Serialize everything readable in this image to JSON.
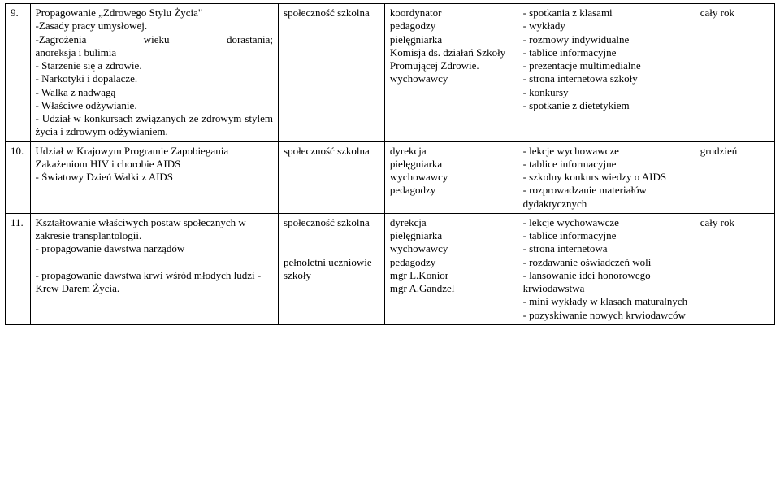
{
  "rows": [
    {
      "num": "9.",
      "desc_lines": {
        "l0": "Propagowanie „Zdrowego Stylu Życia\"",
        "l1": "-Zasady pracy umysłowej.",
        "l2a": "-Zagrożenia",
        "l2b": "wieku",
        "l2c": "dorastania;",
        "l3": "anoreksja i bulimia",
        "l4": "- Starzenie się a zdrowie.",
        "l5": "- Narkotyki i dopalacze.",
        "l6": "- Walka z nadwagą",
        "l7": "- Właściwe odżywianie.",
        "l8": "- Udział w konkursach związanych ze zdrowym stylem życia i zdrowym odżywianiem."
      },
      "who": "społeczność szkolna",
      "resp_lines": {
        "l0": "koordynator",
        "l1": "pedagodzy",
        "l2": "pielęgniarka",
        "l3": "Komisja ds. działań Szkoły Promującej Zdrowie.",
        "l4": "wychowawcy"
      },
      "form_lines": {
        "l0": "- spotkania z klasami",
        "l1": "- wykłady",
        "l2": "- rozmowy indywidualne",
        "l3": "- tablice informacyjne",
        "l4": "- prezentacje multimedialne",
        "l5": "- strona internetowa szkoły",
        "l6": "- konkursy",
        "l7": "- spotkanie z dietetykiem"
      },
      "when": "cały rok"
    },
    {
      "num": "10.",
      "desc_lines": {
        "l0": "Udział w Krajowym Programie Zapobiegania Zakażeniom HIV i chorobie AIDS",
        "l1": "- Światowy Dzień Walki z AIDS"
      },
      "who": "społeczność szkolna",
      "resp_lines": {
        "l0": "dyrekcja",
        "l1": "pielęgniarka",
        "l2": "wychowawcy",
        "l3": "pedagodzy"
      },
      "form_lines": {
        "l0": "- lekcje wychowawcze",
        "l1": "- tablice informacyjne",
        "l2": "- szkolny konkurs wiedzy o AIDS",
        "l3": "- rozprowadzanie materiałów dydaktycznych"
      },
      "when": "grudzień"
    },
    {
      "num": "11.",
      "desc_lines": {
        "l0": "Kształtowanie właściwych postaw społecznych w zakresie transplantologii.",
        "l1": "- propagowanie dawstwa narządów",
        "l2": "",
        "l3": "- propagowanie dawstwa krwi wśród młodych ludzi - Krew Darem Życia."
      },
      "who_lines": {
        "l0": "społeczność szkolna",
        "l1": "",
        "l2": "",
        "l3": "pełnoletni uczniowie szkoły"
      },
      "resp_lines": {
        "l0": "dyrekcja",
        "l1": "pielęgniarka",
        "l2": "wychowawcy",
        "l3": "pedagodzy",
        "l4": "mgr L.Konior",
        "l5": "mgr A.Gandzel"
      },
      "form_lines": {
        "l0": "- lekcje wychowawcze",
        "l1": "- tablice informacyjne",
        "l2": "- strona internetowa",
        "l3": "- rozdawanie oświadczeń woli",
        "l4": "- lansowanie idei honorowego krwiodawstwa",
        "l5": "- mini wykłady w klasach maturalnych",
        "l6": "- pozyskiwanie nowych krwiodawców"
      },
      "when": "cały rok"
    }
  ]
}
